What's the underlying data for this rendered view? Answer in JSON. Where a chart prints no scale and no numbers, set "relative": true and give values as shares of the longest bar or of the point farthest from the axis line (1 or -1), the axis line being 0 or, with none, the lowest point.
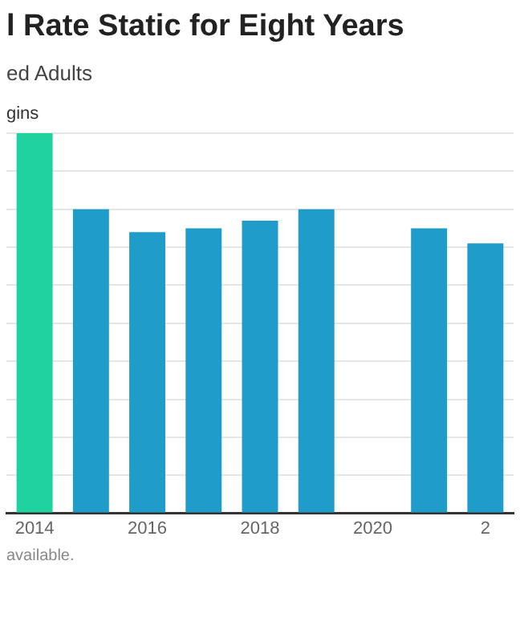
{
  "chart_data": {
    "type": "bar",
    "title": "l Rate Static for Eight Years",
    "subtitle": "ed Adults",
    "annotations": [
      "gins",
      "available."
    ],
    "categories": [
      "2014",
      null,
      "2016",
      null,
      "2018",
      null,
      "2020",
      null,
      "2"
    ],
    "values": [
      1,
      0.8,
      0.74,
      0.75,
      0.77,
      0.8,
      null,
      0.75,
      0.71
    ],
    "colors": [
      "#1ed3a0",
      "#1f9cc9",
      "#1f9cc9",
      "#1f9cc9",
      "#1f9cc9",
      "#1f9cc9",
      "#1f9cc9",
      "#1f9cc9",
      "#1f9cc9"
    ],
    "relative": true,
    "grid": "y",
    "legend": false
  }
}
